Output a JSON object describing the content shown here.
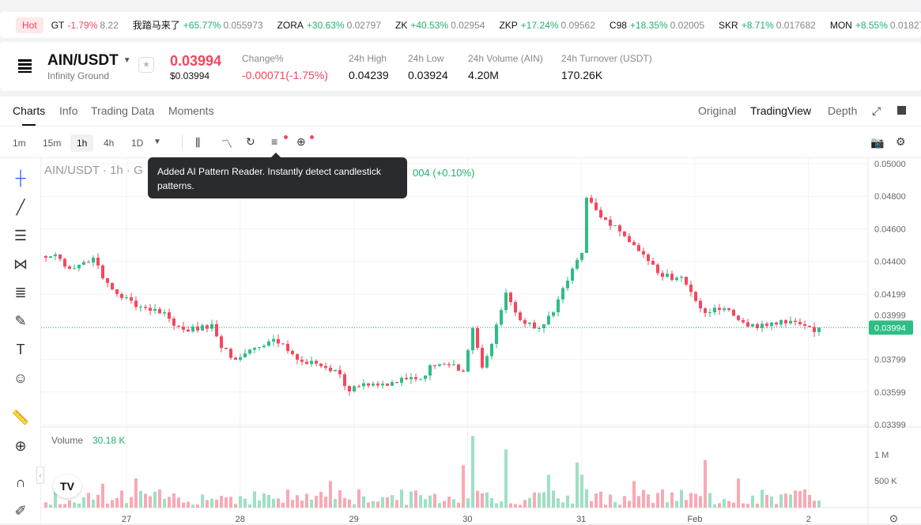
{
  "ticker": {
    "hot_label": "Hot",
    "items": [
      {
        "sym": "GT",
        "chg": "-1.79%",
        "price": "8.22",
        "dir": "dn"
      },
      {
        "sym": "我踏马来了",
        "chg": "+65.77%",
        "price": "0.055973",
        "dir": "up"
      },
      {
        "sym": "ZORA",
        "chg": "+30.63%",
        "price": "0.02797",
        "dir": "up"
      },
      {
        "sym": "ZK",
        "chg": "+40.53%",
        "price": "0.02954",
        "dir": "up"
      },
      {
        "sym": "ZKP",
        "chg": "+17.24%",
        "price": "0.09562",
        "dir": "up"
      },
      {
        "sym": "C98",
        "chg": "+18.35%",
        "price": "0.02005",
        "dir": "up"
      },
      {
        "sym": "SKR",
        "chg": "+8.71%",
        "price": "0.017682",
        "dir": "up"
      },
      {
        "sym": "MON",
        "chg": "+8.55%",
        "price": "0.01827",
        "dir": "up"
      }
    ]
  },
  "header": {
    "pair": "AIN/USDT",
    "name": "Infinity Ground",
    "price": "0.03994",
    "usd_price": "$0.03994",
    "stats": [
      {
        "label": "Change%",
        "value": "-0.00071(-1.75%)"
      },
      {
        "label": "24h High",
        "value": "0.04239"
      },
      {
        "label": "24h Low",
        "value": "0.03924"
      },
      {
        "label": "24h Volume (AIN)",
        "value": "4.20M"
      },
      {
        "label": "24h Turnover (USDT)",
        "value": "170.26K"
      }
    ]
  },
  "tabs": {
    "left": [
      "Charts",
      "Info",
      "Trading Data",
      "Moments"
    ],
    "right": [
      "Original",
      "TradingView",
      "Depth"
    ]
  },
  "intervals": [
    "1m",
    "15m",
    "1h",
    "4h",
    "1D"
  ],
  "tooltip": "Added AI Pattern Reader. Instantly detect candlestick patterns.",
  "legend": {
    "title": "AIN/USDT · 1h · G",
    "change": "004 (+0.10%)",
    "volume_label": "Volume",
    "volume_value": "30.18 K"
  },
  "chart_data": {
    "type": "candlestick",
    "price_ticks": [
      "0.05000",
      "0.04800",
      "0.04600",
      "0.04400",
      "0.04199",
      "0.03999",
      "0.03799",
      "0.03599",
      "0.03399"
    ],
    "price_tick_values": [
      0.05,
      0.048,
      0.046,
      0.044,
      0.04199,
      0.03999,
      0.03799,
      0.03599,
      0.03399
    ],
    "current_price": "0.03994",
    "x_ticks": [
      "27",
      "28",
      "29",
      "30",
      "31",
      "Feb",
      "2"
    ],
    "volume_ticks": [
      "1 M",
      "500 K"
    ],
    "close_waypoints": [
      [
        0,
        0.04423
      ],
      [
        2,
        0.04442
      ],
      [
        5,
        0.04355
      ],
      [
        10,
        0.04423
      ],
      [
        12,
        0.04297
      ],
      [
        15,
        0.042
      ],
      [
        20,
        0.04122
      ],
      [
        25,
        0.04088
      ],
      [
        27,
        0.04006
      ],
      [
        32,
        0.03977
      ],
      [
        35,
        0.04015
      ],
      [
        37,
        0.0387
      ],
      [
        40,
        0.03797
      ],
      [
        44,
        0.0387
      ],
      [
        47,
        0.03909
      ],
      [
        50,
        0.03894
      ],
      [
        53,
        0.03797
      ],
      [
        57,
        0.03773
      ],
      [
        61,
        0.03734
      ],
      [
        64,
        0.03603
      ],
      [
        67,
        0.03652
      ],
      [
        72,
        0.03637
      ],
      [
        75,
        0.03686
      ],
      [
        80,
        0.037
      ],
      [
        81,
        0.03763
      ],
      [
        85,
        0.03763
      ],
      [
        88,
        0.03724
      ],
      [
        90,
        0.03991
      ],
      [
        92,
        0.03749
      ],
      [
        94,
        0.03894
      ],
      [
        97,
        0.04209
      ],
      [
        100,
        0.0404
      ],
      [
        104,
        0.03991
      ],
      [
        107,
        0.04088
      ],
      [
        110,
        0.04282
      ],
      [
        113,
        0.04452
      ],
      [
        114,
        0.04791
      ],
      [
        117,
        0.0467
      ],
      [
        120,
        0.04622
      ],
      [
        124,
        0.045
      ],
      [
        127,
        0.04403
      ],
      [
        130,
        0.04306
      ],
      [
        134,
        0.04306
      ],
      [
        135,
        0.04258
      ],
      [
        138,
        0.04112
      ],
      [
        140,
        0.04088
      ],
      [
        143,
        0.04112
      ],
      [
        146,
        0.0404
      ],
      [
        150,
        0.03991
      ],
      [
        153,
        0.04025
      ],
      [
        155,
        0.0404
      ],
      [
        159,
        0.04015
      ],
      [
        162,
        0.03967
      ],
      [
        163,
        0.03994
      ]
    ],
    "volume_spikes": [
      [
        12,
        0.45
      ],
      [
        19,
        0.55
      ],
      [
        90,
        1.35
      ],
      [
        88,
        0.8
      ],
      [
        97,
        1.1
      ],
      [
        112,
        0.85
      ],
      [
        113,
        0.62
      ],
      [
        139,
        0.9
      ],
      [
        146,
        0.55
      ],
      [
        124,
        0.5
      ],
      [
        106,
        0.62
      ],
      [
        60,
        0.5
      ]
    ]
  },
  "colors": {
    "up": "#2ebd85",
    "down": "#f6465d"
  }
}
